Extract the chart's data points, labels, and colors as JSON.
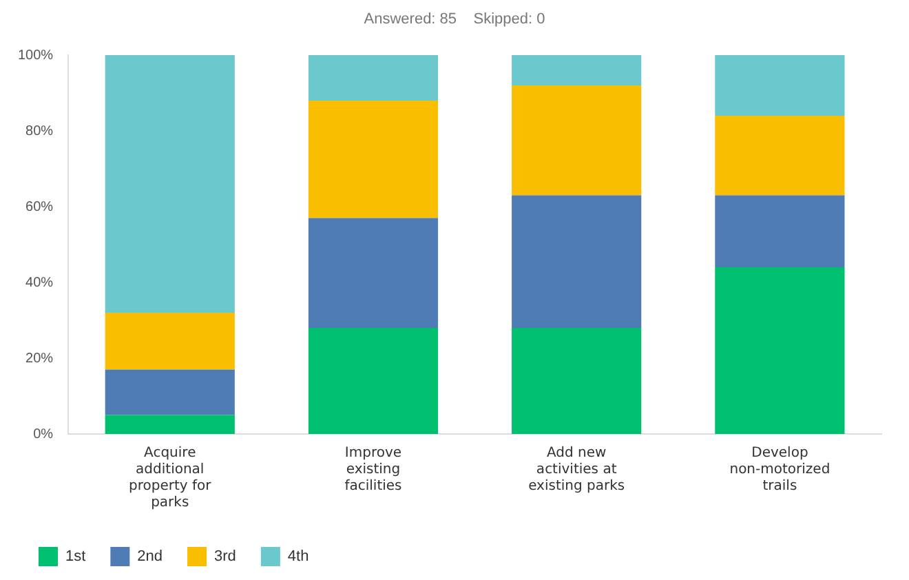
{
  "chart_data": {
    "type": "bar",
    "stacked": true,
    "subtitle": "Answered: 85    Skipped: 0",
    "categories": [
      [
        "Acquire",
        "additional",
        "property for",
        "parks"
      ],
      [
        "Improve",
        "existing",
        "facilities"
      ],
      [
        "Add new",
        "activities at",
        "existing parks"
      ],
      [
        "Develop",
        "non-motorized",
        "trails"
      ]
    ],
    "series": [
      {
        "name": "1st",
        "color": "#00bf6f",
        "values": [
          5,
          28,
          28,
          44
        ]
      },
      {
        "name": "2nd",
        "color": "#507cb6",
        "values": [
          12,
          29,
          35,
          19
        ]
      },
      {
        "name": "3rd",
        "color": "#f9be00",
        "values": [
          15,
          31,
          29,
          21
        ]
      },
      {
        "name": "4th",
        "color": "#6bc8cd",
        "values": [
          68,
          12,
          8,
          16
        ]
      }
    ],
    "ylim": [
      0,
      100
    ],
    "yticks": [
      {
        "value": 0,
        "label": "0%"
      },
      {
        "value": 20,
        "label": "20%"
      },
      {
        "value": 40,
        "label": "40%"
      },
      {
        "value": 60,
        "label": "60%"
      },
      {
        "value": 80,
        "label": "80%"
      },
      {
        "value": 100,
        "label": "100%"
      }
    ],
    "grid": false,
    "legend": "bottom left"
  }
}
